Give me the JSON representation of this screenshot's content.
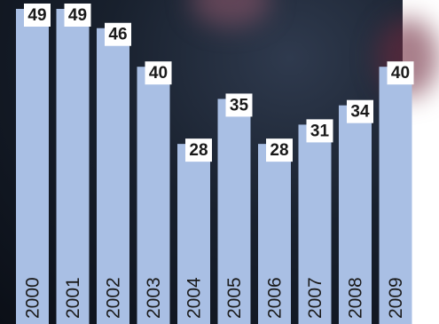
{
  "chart_data": {
    "type": "bar",
    "title": "",
    "xlabel": "",
    "ylabel": "",
    "categories": [
      "2000",
      "2001",
      "2002",
      "2003",
      "2004",
      "2005",
      "2006",
      "2007",
      "2008",
      "2009"
    ],
    "values": [
      49,
      49,
      46,
      40,
      28,
      35,
      28,
      31,
      34,
      40
    ],
    "ylim": [
      0,
      53
    ],
    "grid": false,
    "legend": "none",
    "colors": {
      "bar": "#a9bfe4",
      "label_box": "#ffffff",
      "label_text": "#1a1a1a",
      "tick_text": "#1a1a1a"
    }
  }
}
